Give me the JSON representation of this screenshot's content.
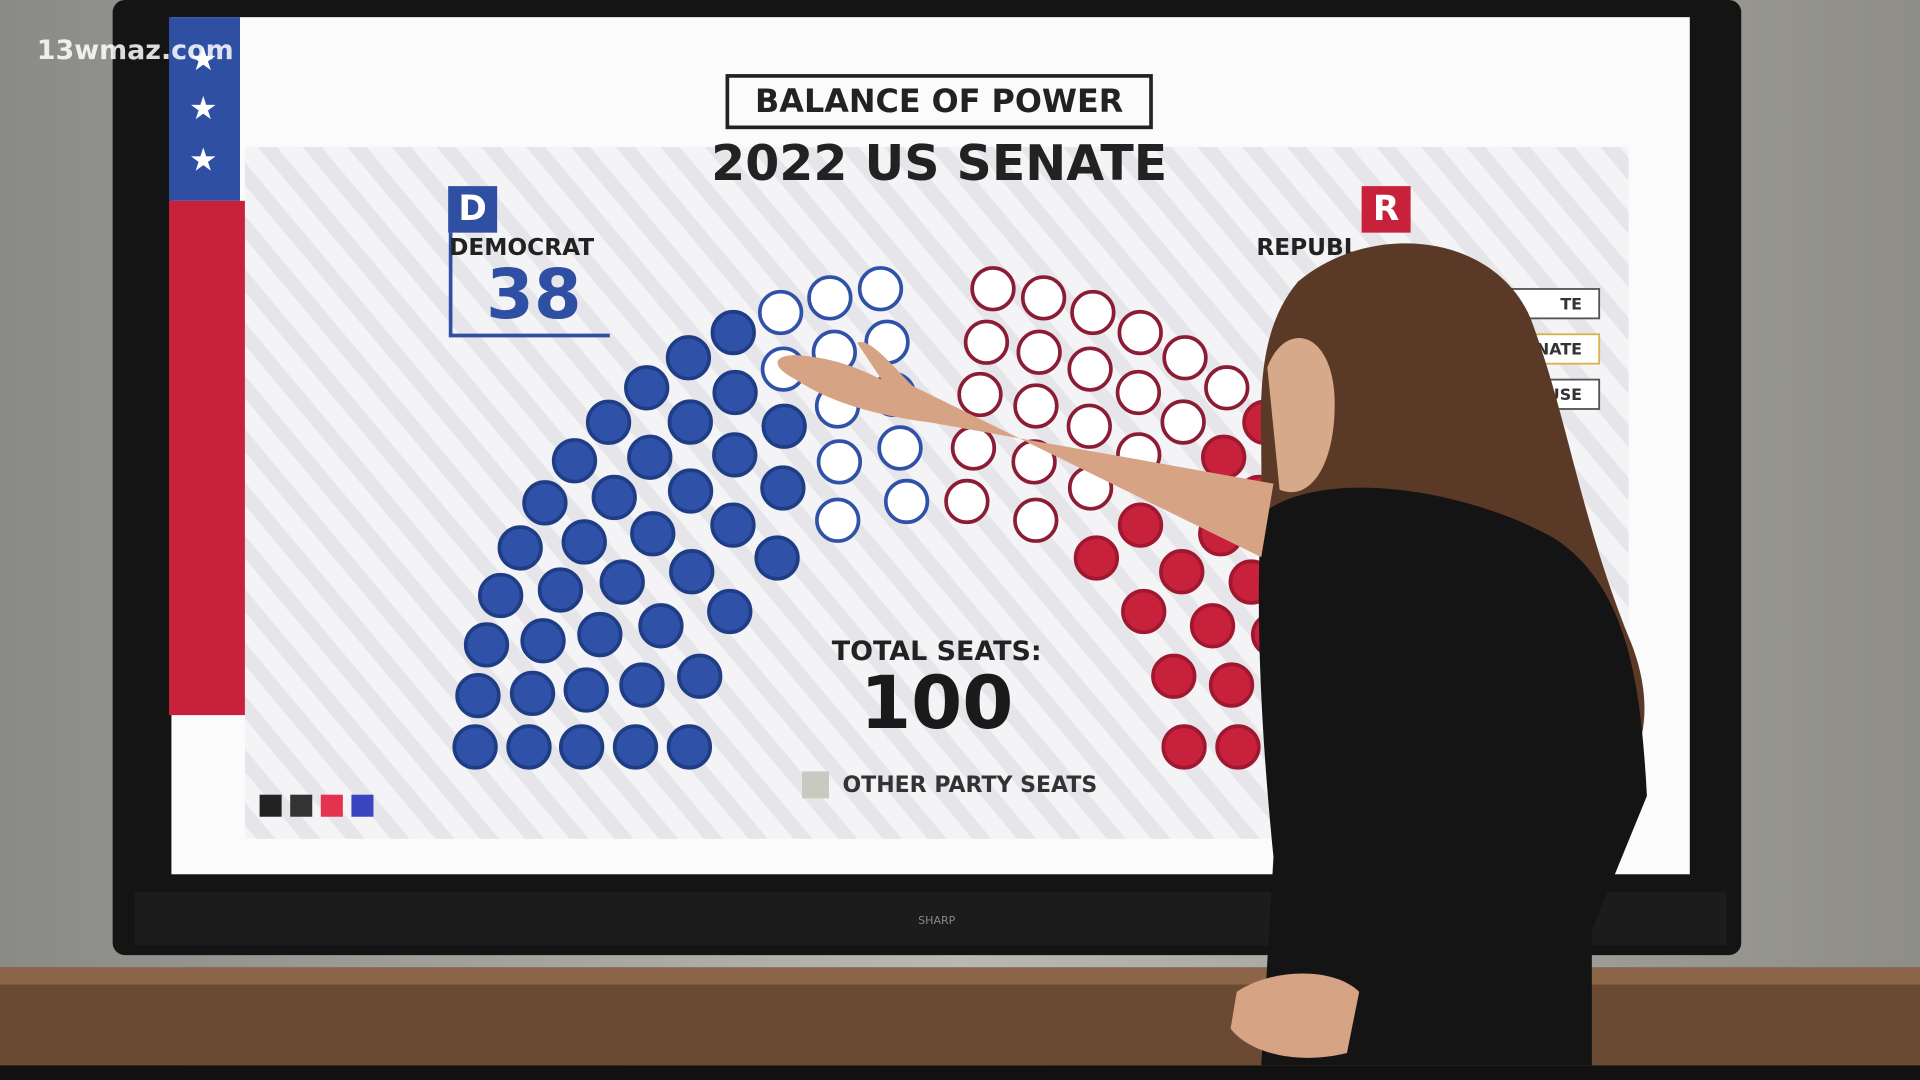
{
  "watermark": "13wmaz.com",
  "header": {
    "box_title": "BALANCE OF POWER",
    "title": "2022 US SENATE"
  },
  "democrat": {
    "badge": "D",
    "label": "DEMOCRAT",
    "seats": 38
  },
  "republican": {
    "badge": "R",
    "label": "REPUBL"
  },
  "total": {
    "label": "TOTAL SEATS:",
    "value": 100
  },
  "legend": {
    "label": "OTHER PARTY SEATS"
  },
  "menu": [
    "TE",
    "ENATE",
    "OUSE"
  ],
  "brand": "SHARP"
}
